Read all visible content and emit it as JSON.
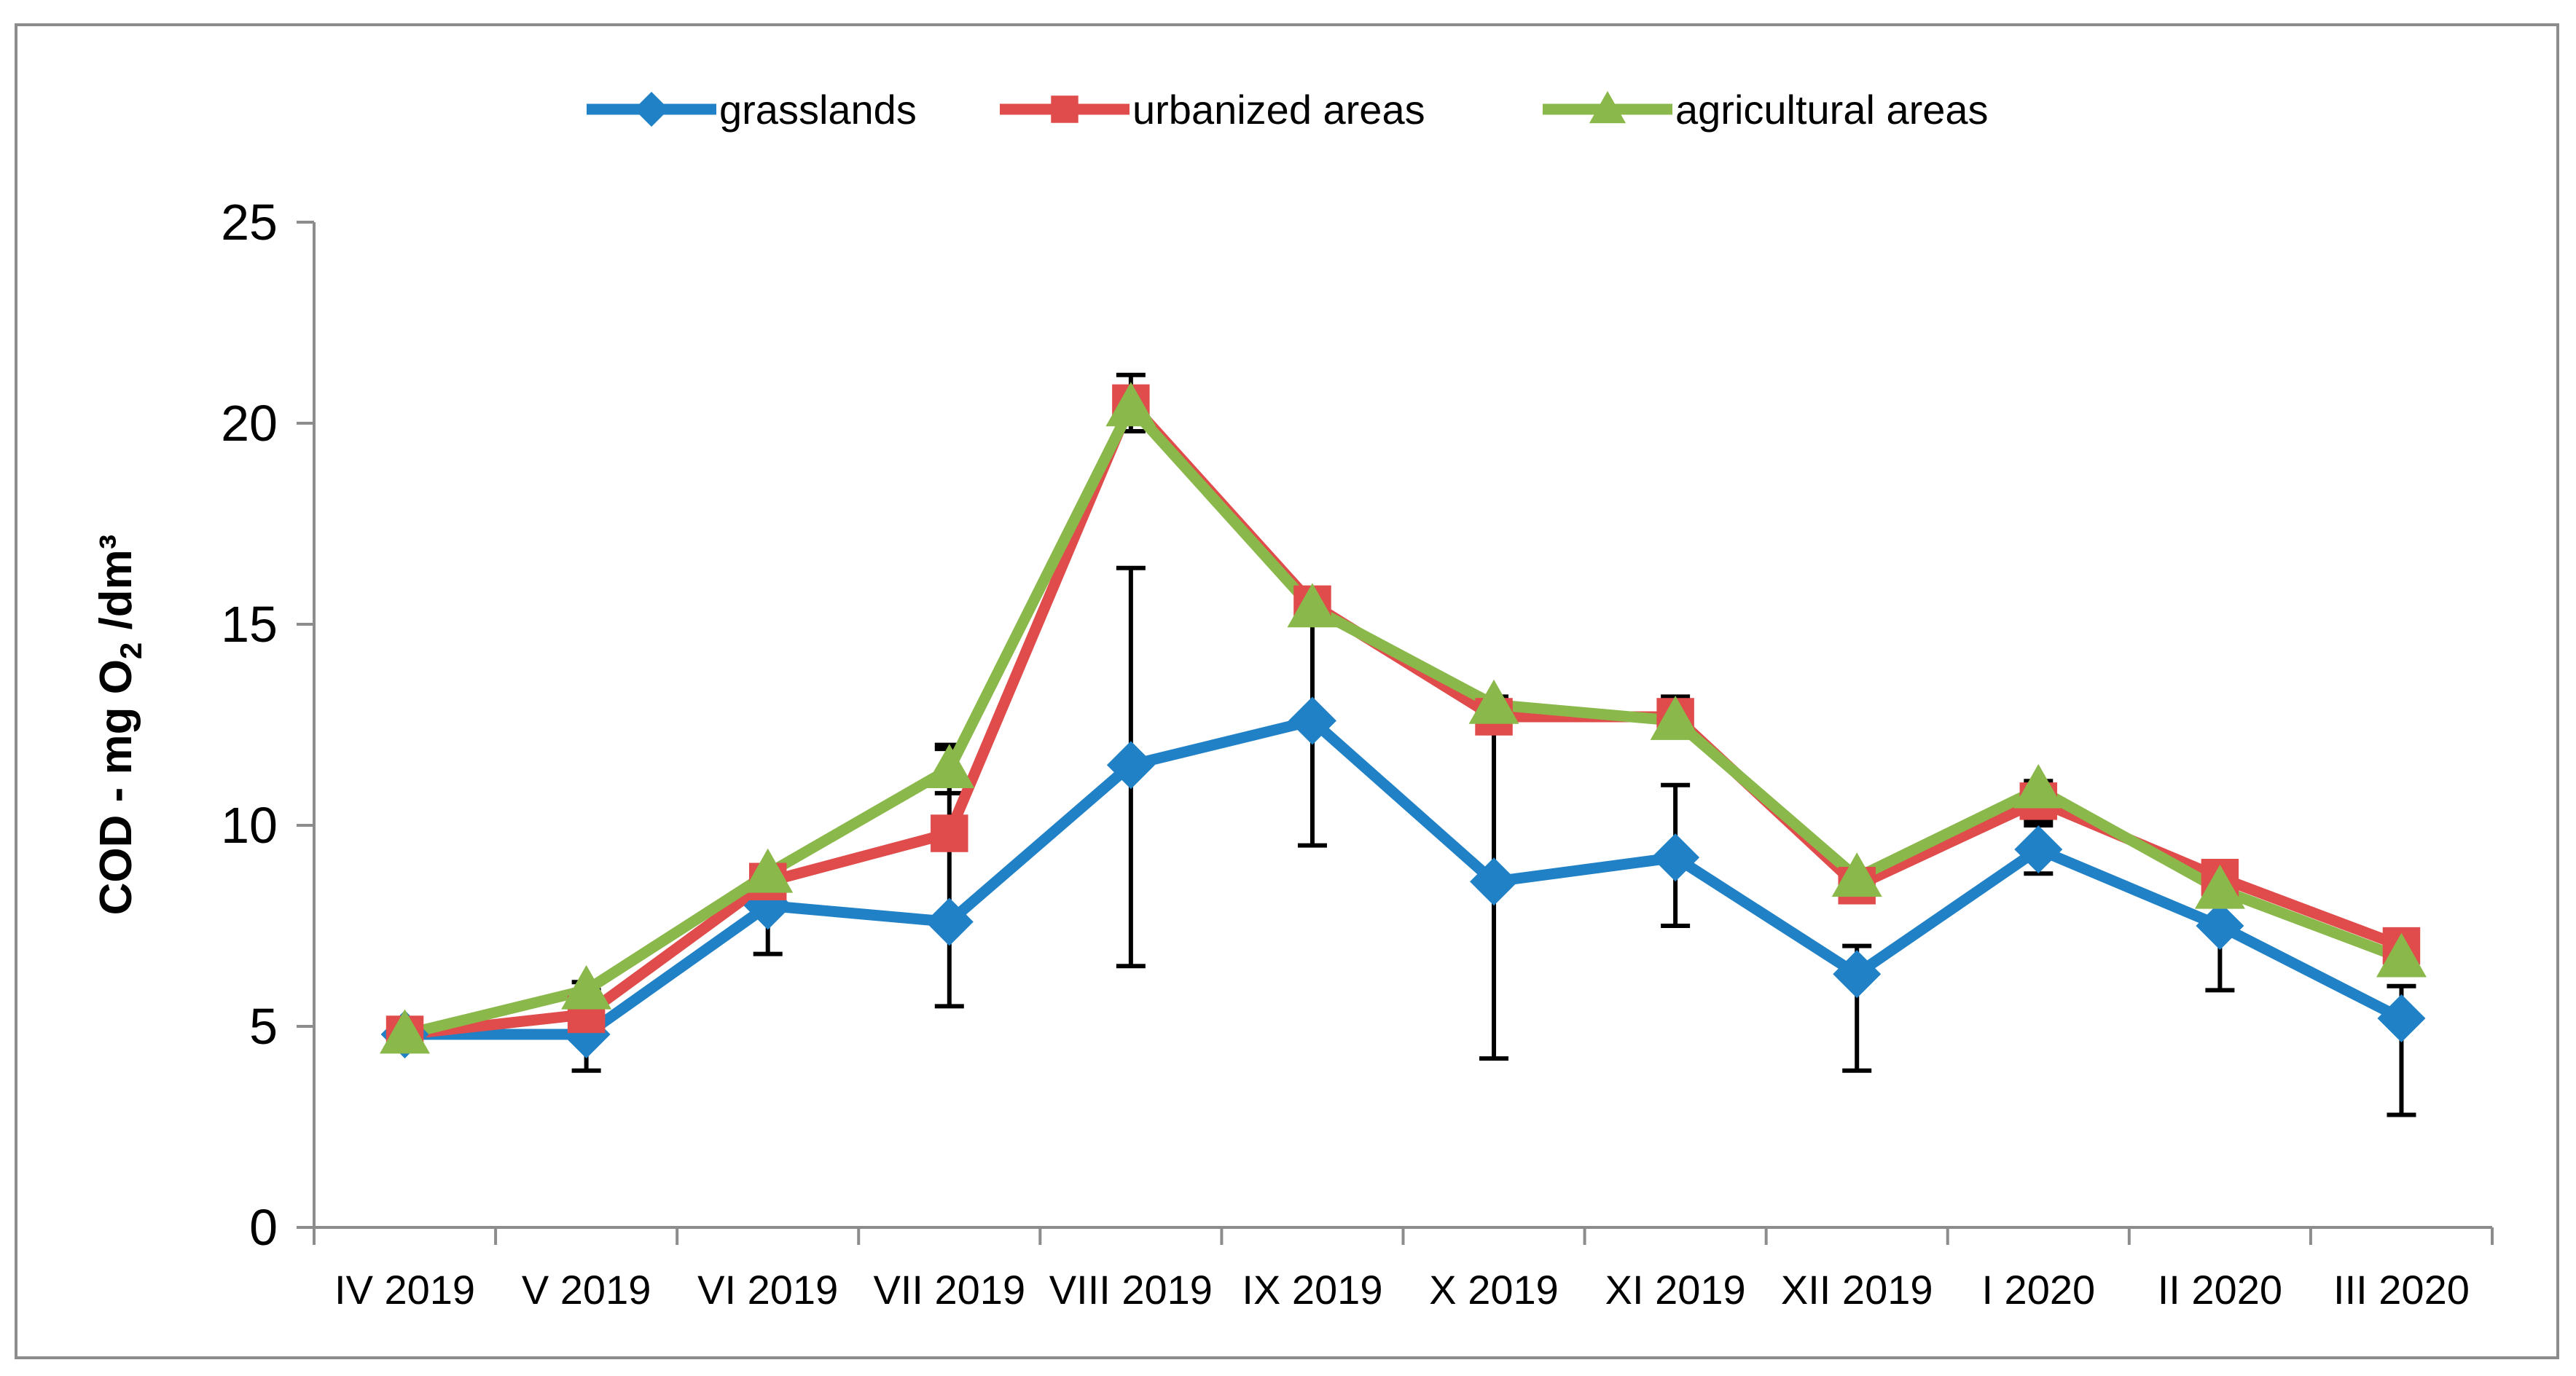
{
  "chart_data": {
    "type": "line",
    "title": "",
    "xlabel": "",
    "ylabel_main": "COD - mg O",
    "ylabel_sub": "2",
    "ylabel_tail": " /dm³",
    "ylim": [
      0,
      25
    ],
    "yticks": [
      "0",
      "5",
      "10",
      "15",
      "20",
      "25"
    ],
    "grid": false,
    "legend_position": "top-center",
    "categories": [
      "IV 2019",
      "V 2019",
      "VI 2019",
      "VII 2019",
      "VIII 2019",
      "IX 2019",
      "X 2019",
      "XI 2019",
      "XII 2019",
      "I 2020",
      "II 2020",
      "III 2020"
    ],
    "series": [
      {
        "name": "grasslands",
        "color": "#2181C6",
        "marker": "diamond",
        "values": [
          4.8,
          4.8,
          8.0,
          7.6,
          11.5,
          12.6,
          8.6,
          9.2,
          6.3,
          9.4,
          7.5,
          5.2
        ],
        "error_low": [
          4.8,
          3.9,
          6.8,
          5.5,
          6.5,
          9.5,
          4.2,
          7.5,
          3.9,
          8.8,
          5.9,
          2.8
        ],
        "error_high": [
          4.8,
          5.8,
          9.0,
          9.7,
          16.4,
          15.0,
          12.7,
          11.0,
          7.0,
          10.0,
          8.6,
          6.0
        ]
      },
      {
        "name": "urbanized areas",
        "color": "#E04B4B",
        "marker": "square",
        "values": [
          4.8,
          5.3,
          8.6,
          9.8,
          20.5,
          15.5,
          12.7,
          12.7,
          8.5,
          10.6,
          8.7,
          7.0
        ],
        "error_low": [
          4.8,
          5.3,
          8.6,
          9.8,
          19.8,
          15.5,
          12.3,
          12.3,
          8.5,
          10.1,
          8.7,
          7.0
        ],
        "error_high": [
          4.8,
          5.3,
          8.6,
          11.9,
          21.2,
          15.5,
          13.2,
          13.2,
          8.5,
          11.1,
          8.7,
          7.0
        ]
      },
      {
        "name": "agricultural areas",
        "color": "#8AB84A",
        "marker": "triangle",
        "values": [
          4.8,
          5.9,
          8.8,
          11.4,
          20.4,
          15.4,
          13.0,
          12.6,
          8.7,
          10.9,
          8.4,
          6.7
        ],
        "error_low": [
          4.8,
          5.9,
          8.8,
          10.8,
          20.4,
          15.4,
          13.0,
          12.6,
          8.7,
          10.9,
          8.4,
          6.7
        ],
        "error_high": [
          4.8,
          6.1,
          8.8,
          12.0,
          20.4,
          15.4,
          13.0,
          12.6,
          8.7,
          10.9,
          8.4,
          6.7
        ]
      }
    ]
  }
}
